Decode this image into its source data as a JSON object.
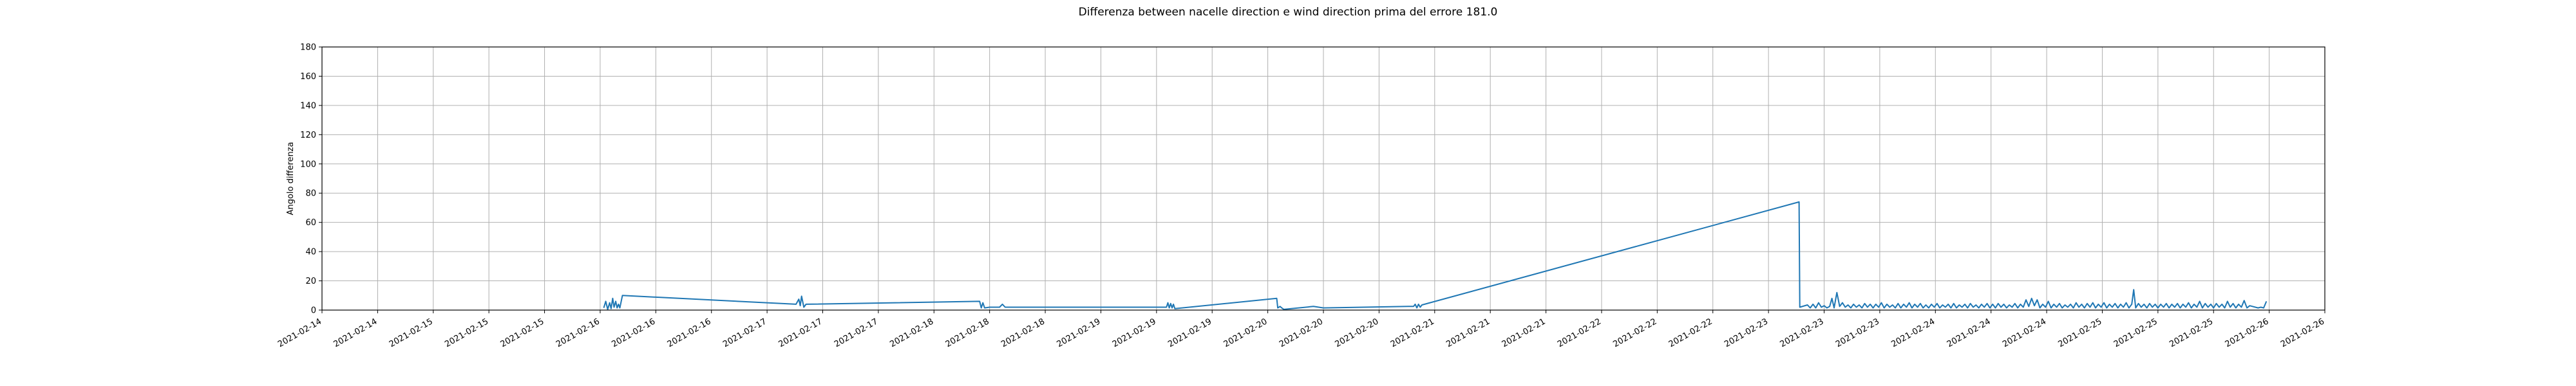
{
  "chart_data": {
    "type": "line",
    "title": "Differenza between nacelle direction e wind direction prima del errore 181.0",
    "xlabel": "",
    "ylabel": "Angolo differenza",
    "ylim": [
      0,
      180
    ],
    "yticks": [
      0,
      20,
      40,
      60,
      80,
      100,
      120,
      140,
      160,
      180
    ],
    "xlim": [
      "2021-02-14T00:00",
      "2021-02-26T00:00"
    ],
    "xticks": [
      {
        "t": "2021-02-14T00:00",
        "label": "2021-02-14"
      },
      {
        "t": "2021-02-14T08:00",
        "label": "2021-02-14"
      },
      {
        "t": "2021-02-14T16:00",
        "label": "2021-02-15"
      },
      {
        "t": "2021-02-15T00:00",
        "label": "2021-02-15"
      },
      {
        "t": "2021-02-15T08:00",
        "label": "2021-02-15"
      },
      {
        "t": "2021-02-15T16:00",
        "label": "2021-02-16"
      },
      {
        "t": "2021-02-16T00:00",
        "label": "2021-02-16"
      },
      {
        "t": "2021-02-16T08:00",
        "label": "2021-02-16"
      },
      {
        "t": "2021-02-16T16:00",
        "label": "2021-02-17"
      },
      {
        "t": "2021-02-17T00:00",
        "label": "2021-02-17"
      },
      {
        "t": "2021-02-17T08:00",
        "label": "2021-02-17"
      },
      {
        "t": "2021-02-17T16:00",
        "label": "2021-02-18"
      },
      {
        "t": "2021-02-18T00:00",
        "label": "2021-02-18"
      },
      {
        "t": "2021-02-18T08:00",
        "label": "2021-02-18"
      },
      {
        "t": "2021-02-18T16:00",
        "label": "2021-02-19"
      },
      {
        "t": "2021-02-19T00:00",
        "label": "2021-02-19"
      },
      {
        "t": "2021-02-19T08:00",
        "label": "2021-02-19"
      },
      {
        "t": "2021-02-19T16:00",
        "label": "2021-02-20"
      },
      {
        "t": "2021-02-20T00:00",
        "label": "2021-02-20"
      },
      {
        "t": "2021-02-20T08:00",
        "label": "2021-02-20"
      },
      {
        "t": "2021-02-20T16:00",
        "label": "2021-02-21"
      },
      {
        "t": "2021-02-21T00:00",
        "label": "2021-02-21"
      },
      {
        "t": "2021-02-21T08:00",
        "label": "2021-02-21"
      },
      {
        "t": "2021-02-21T16:00",
        "label": "2021-02-22"
      },
      {
        "t": "2021-02-22T00:00",
        "label": "2021-02-22"
      },
      {
        "t": "2021-02-22T08:00",
        "label": "2021-02-22"
      },
      {
        "t": "2021-02-22T16:00",
        "label": "2021-02-23"
      },
      {
        "t": "2021-02-23T00:00",
        "label": "2021-02-23"
      },
      {
        "t": "2021-02-23T08:00",
        "label": "2021-02-23"
      },
      {
        "t": "2021-02-23T16:00",
        "label": "2021-02-24"
      },
      {
        "t": "2021-02-24T00:00",
        "label": "2021-02-24"
      },
      {
        "t": "2021-02-24T08:00",
        "label": "2021-02-24"
      },
      {
        "t": "2021-02-24T16:00",
        "label": "2021-02-25"
      },
      {
        "t": "2021-02-25T00:00",
        "label": "2021-02-25"
      },
      {
        "t": "2021-02-25T08:00",
        "label": "2021-02-25"
      },
      {
        "t": "2021-02-25T16:00",
        "label": "2021-02-26"
      },
      {
        "t": "2021-02-26T00:00",
        "label": "2021-02-26"
      }
    ],
    "grid": true,
    "series": [
      {
        "color": "#1f77b4",
        "points": [
          [
            "2021-02-15T16:31",
            1.5
          ],
          [
            "2021-02-15T16:48",
            6
          ],
          [
            "2021-02-15T17:05",
            0.5
          ],
          [
            "2021-02-15T17:22",
            5
          ],
          [
            "2021-02-15T17:34",
            1
          ],
          [
            "2021-02-15T17:48",
            8
          ],
          [
            "2021-02-15T18:00",
            2
          ],
          [
            "2021-02-15T18:14",
            6
          ],
          [
            "2021-02-15T18:26",
            1.5
          ],
          [
            "2021-02-15T18:38",
            4
          ],
          [
            "2021-02-15T18:50",
            1.5
          ],
          [
            "2021-02-15T19:12",
            10
          ],
          [
            "2021-02-16T20:10",
            4
          ],
          [
            "2021-02-16T20:34",
            7.5
          ],
          [
            "2021-02-16T20:46",
            3
          ],
          [
            "2021-02-16T20:58",
            9.5
          ],
          [
            "2021-02-16T21:17",
            2
          ],
          [
            "2021-02-16T21:36",
            4
          ],
          [
            "2021-02-17T22:34",
            6
          ],
          [
            "2021-02-17T22:48",
            1.5
          ],
          [
            "2021-02-17T23:02",
            5
          ],
          [
            "2021-02-17T23:17",
            1.5
          ],
          [
            "2021-02-18T00:00",
            2
          ],
          [
            "2021-02-18T01:26",
            2
          ],
          [
            "2021-02-18T01:50",
            4
          ],
          [
            "2021-02-18T02:14",
            2
          ],
          [
            "2021-02-19T01:26",
            2
          ],
          [
            "2021-02-19T01:38",
            5
          ],
          [
            "2021-02-19T01:50",
            1.5
          ],
          [
            "2021-02-19T02:02",
            4.5
          ],
          [
            "2021-02-19T02:14",
            1.5
          ],
          [
            "2021-02-19T02:26",
            4
          ],
          [
            "2021-02-19T02:38",
            1
          ],
          [
            "2021-02-19T17:17",
            8
          ],
          [
            "2021-02-19T17:26",
            1.5
          ],
          [
            "2021-02-19T17:46",
            2.5
          ],
          [
            "2021-02-19T18:00",
            1.5
          ],
          [
            "2021-02-19T18:19",
            0.5
          ],
          [
            "2021-02-19T22:34",
            2.5
          ],
          [
            "2021-02-20T00:00",
            1.5
          ],
          [
            "2021-02-20T12:14",
            2.5
          ],
          [
            "2021-02-20T12:58",
            2.5
          ],
          [
            "2021-02-20T13:12",
            4
          ],
          [
            "2021-02-20T13:26",
            1.5
          ],
          [
            "2021-02-20T13:40",
            4
          ],
          [
            "2021-02-20T13:55",
            2
          ],
          [
            "2021-02-20T14:10",
            3.5
          ],
          [
            "2021-02-22T20:24",
            74
          ],
          [
            "2021-02-22T20:30",
            2
          ],
          [
            "2021-02-22T21:36",
            3.5
          ],
          [
            "2021-02-22T22:00",
            1.5
          ],
          [
            "2021-02-22T22:24",
            4
          ],
          [
            "2021-02-22T22:48",
            1.5
          ],
          [
            "2021-02-22T23:12",
            5
          ],
          [
            "2021-02-22T23:36",
            2
          ],
          [
            "2021-02-23T00:00",
            3
          ],
          [
            "2021-02-23T00:24",
            1.5
          ],
          [
            "2021-02-23T00:48",
            2.5
          ],
          [
            "2021-02-23T01:07",
            8
          ],
          [
            "2021-02-23T01:26",
            1.5
          ],
          [
            "2021-02-23T01:50",
            12
          ],
          [
            "2021-02-23T02:14",
            2.5
          ],
          [
            "2021-02-23T02:38",
            5
          ],
          [
            "2021-02-23T03:02",
            2
          ],
          [
            "2021-02-23T03:26",
            3.5
          ],
          [
            "2021-02-23T03:50",
            1.5
          ],
          [
            "2021-02-23T04:14",
            4
          ],
          [
            "2021-02-23T04:38",
            2
          ],
          [
            "2021-02-23T05:02",
            3.5
          ],
          [
            "2021-02-23T05:26",
            1.5
          ],
          [
            "2021-02-23T05:50",
            4.5
          ],
          [
            "2021-02-23T06:14",
            2
          ],
          [
            "2021-02-23T06:38",
            4
          ],
          [
            "2021-02-23T07:02",
            1.5
          ],
          [
            "2021-02-23T07:26",
            4
          ],
          [
            "2021-02-23T07:50",
            2
          ],
          [
            "2021-02-23T08:14",
            5
          ],
          [
            "2021-02-23T08:38",
            1.5
          ],
          [
            "2021-02-23T09:02",
            4
          ],
          [
            "2021-02-23T09:26",
            2
          ],
          [
            "2021-02-23T09:50",
            3.5
          ],
          [
            "2021-02-23T10:14",
            1.5
          ],
          [
            "2021-02-23T10:38",
            4.5
          ],
          [
            "2021-02-23T11:02",
            1.5
          ],
          [
            "2021-02-23T11:26",
            4
          ],
          [
            "2021-02-23T11:50",
            2
          ],
          [
            "2021-02-23T12:14",
            5
          ],
          [
            "2021-02-23T12:38",
            1.5
          ],
          [
            "2021-02-23T13:02",
            4
          ],
          [
            "2021-02-23T13:26",
            2
          ],
          [
            "2021-02-23T13:50",
            4.5
          ],
          [
            "2021-02-23T14:14",
            1.5
          ],
          [
            "2021-02-23T14:38",
            3.5
          ],
          [
            "2021-02-23T15:02",
            1.5
          ],
          [
            "2021-02-23T15:26",
            4
          ],
          [
            "2021-02-23T15:50",
            2
          ],
          [
            "2021-02-23T16:14",
            4.5
          ],
          [
            "2021-02-23T16:38",
            1.5
          ],
          [
            "2021-02-23T17:02",
            3.5
          ],
          [
            "2021-02-23T17:26",
            2
          ],
          [
            "2021-02-23T17:50",
            4
          ],
          [
            "2021-02-23T18:14",
            1.5
          ],
          [
            "2021-02-23T18:38",
            4.5
          ],
          [
            "2021-02-23T19:02",
            1.5
          ],
          [
            "2021-02-23T19:26",
            3.5
          ],
          [
            "2021-02-23T19:50",
            2
          ],
          [
            "2021-02-23T20:14",
            4
          ],
          [
            "2021-02-23T20:38",
            1.5
          ],
          [
            "2021-02-23T21:02",
            4.5
          ],
          [
            "2021-02-23T21:26",
            2
          ],
          [
            "2021-02-23T21:50",
            3.5
          ],
          [
            "2021-02-23T22:14",
            1.5
          ],
          [
            "2021-02-23T22:38",
            4
          ],
          [
            "2021-02-23T23:02",
            2
          ],
          [
            "2021-02-23T23:26",
            4.5
          ],
          [
            "2021-02-23T23:50",
            1.5
          ],
          [
            "2021-02-24T00:14",
            4
          ],
          [
            "2021-02-24T00:38",
            1.5
          ],
          [
            "2021-02-24T01:02",
            4.5
          ],
          [
            "2021-02-24T01:26",
            2
          ],
          [
            "2021-02-24T01:50",
            4
          ],
          [
            "2021-02-24T02:14",
            1.5
          ],
          [
            "2021-02-24T02:38",
            3.5
          ],
          [
            "2021-02-24T03:02",
            2
          ],
          [
            "2021-02-24T03:26",
            4.5
          ],
          [
            "2021-02-24T03:50",
            1.5
          ],
          [
            "2021-02-24T04:14",
            4
          ],
          [
            "2021-02-24T04:38",
            2
          ],
          [
            "2021-02-24T05:02",
            7
          ],
          [
            "2021-02-24T05:26",
            2.5
          ],
          [
            "2021-02-24T05:50",
            8
          ],
          [
            "2021-02-24T06:14",
            3
          ],
          [
            "2021-02-24T06:38",
            7
          ],
          [
            "2021-02-24T07:02",
            1.5
          ],
          [
            "2021-02-24T07:26",
            4
          ],
          [
            "2021-02-24T07:50",
            2
          ],
          [
            "2021-02-24T08:14",
            6
          ],
          [
            "2021-02-24T08:38",
            1.5
          ],
          [
            "2021-02-24T09:02",
            4
          ],
          [
            "2021-02-24T09:26",
            2
          ],
          [
            "2021-02-24T09:50",
            4.5
          ],
          [
            "2021-02-24T10:14",
            1.5
          ],
          [
            "2021-02-24T10:38",
            3.5
          ],
          [
            "2021-02-24T11:02",
            2
          ],
          [
            "2021-02-24T11:26",
            4
          ],
          [
            "2021-02-24T11:50",
            1.5
          ],
          [
            "2021-02-24T12:14",
            5
          ],
          [
            "2021-02-24T12:38",
            2
          ],
          [
            "2021-02-24T13:02",
            4
          ],
          [
            "2021-02-24T13:26",
            1.5
          ],
          [
            "2021-02-24T13:50",
            4.5
          ],
          [
            "2021-02-24T14:14",
            2
          ],
          [
            "2021-02-24T14:38",
            5
          ],
          [
            "2021-02-24T15:02",
            1.5
          ],
          [
            "2021-02-24T15:26",
            4
          ],
          [
            "2021-02-24T15:50",
            2
          ],
          [
            "2021-02-24T16:14",
            5
          ],
          [
            "2021-02-24T16:38",
            1.5
          ],
          [
            "2021-02-24T17:02",
            4
          ],
          [
            "2021-02-24T17:26",
            2
          ],
          [
            "2021-02-24T17:50",
            4.5
          ],
          [
            "2021-02-24T18:14",
            1.5
          ],
          [
            "2021-02-24T18:38",
            4
          ],
          [
            "2021-02-24T19:02",
            2
          ],
          [
            "2021-02-24T19:26",
            5
          ],
          [
            "2021-02-24T19:50",
            1.5
          ],
          [
            "2021-02-24T20:14",
            4
          ],
          [
            "2021-02-24T20:31",
            14
          ],
          [
            "2021-02-24T20:48",
            1.5
          ],
          [
            "2021-02-24T21:12",
            4.5
          ],
          [
            "2021-02-24T21:36",
            2
          ],
          [
            "2021-02-24T22:00",
            4
          ],
          [
            "2021-02-24T22:24",
            1.5
          ],
          [
            "2021-02-24T22:48",
            4.5
          ],
          [
            "2021-02-24T23:12",
            2
          ],
          [
            "2021-02-24T23:36",
            4
          ],
          [
            "2021-02-25T00:00",
            1.5
          ],
          [
            "2021-02-25T00:24",
            4
          ],
          [
            "2021-02-25T00:48",
            2
          ],
          [
            "2021-02-25T01:12",
            4.5
          ],
          [
            "2021-02-25T01:36",
            1.5
          ],
          [
            "2021-02-25T02:00",
            4
          ],
          [
            "2021-02-25T02:24",
            2
          ],
          [
            "2021-02-25T02:48",
            4.5
          ],
          [
            "2021-02-25T03:12",
            1.5
          ],
          [
            "2021-02-25T03:36",
            4
          ],
          [
            "2021-02-25T04:00",
            2
          ],
          [
            "2021-02-25T04:24",
            5
          ],
          [
            "2021-02-25T04:48",
            1.5
          ],
          [
            "2021-02-25T05:12",
            4
          ],
          [
            "2021-02-25T05:36",
            2
          ],
          [
            "2021-02-25T06:00",
            6
          ],
          [
            "2021-02-25T06:24",
            1.5
          ],
          [
            "2021-02-25T06:48",
            4.5
          ],
          [
            "2021-02-25T07:12",
            2
          ],
          [
            "2021-02-25T07:36",
            4
          ],
          [
            "2021-02-25T08:00",
            1.5
          ],
          [
            "2021-02-25T08:24",
            4.5
          ],
          [
            "2021-02-25T08:48",
            2
          ],
          [
            "2021-02-25T09:12",
            4
          ],
          [
            "2021-02-25T09:36",
            1.5
          ],
          [
            "2021-02-25T10:00",
            6
          ],
          [
            "2021-02-25T10:24",
            2
          ],
          [
            "2021-02-25T10:48",
            4.5
          ],
          [
            "2021-02-25T11:12",
            1.5
          ],
          [
            "2021-02-25T11:36",
            4
          ],
          [
            "2021-02-25T12:00",
            2
          ],
          [
            "2021-02-25T12:24",
            6.5
          ],
          [
            "2021-02-25T12:48",
            1.5
          ],
          [
            "2021-02-25T13:12",
            3
          ],
          [
            "2021-02-25T14:24",
            1.5
          ],
          [
            "2021-02-25T14:48",
            2
          ],
          [
            "2021-02-25T15:12",
            1.5
          ],
          [
            "2021-02-25T15:36",
            6
          ]
        ]
      }
    ]
  }
}
